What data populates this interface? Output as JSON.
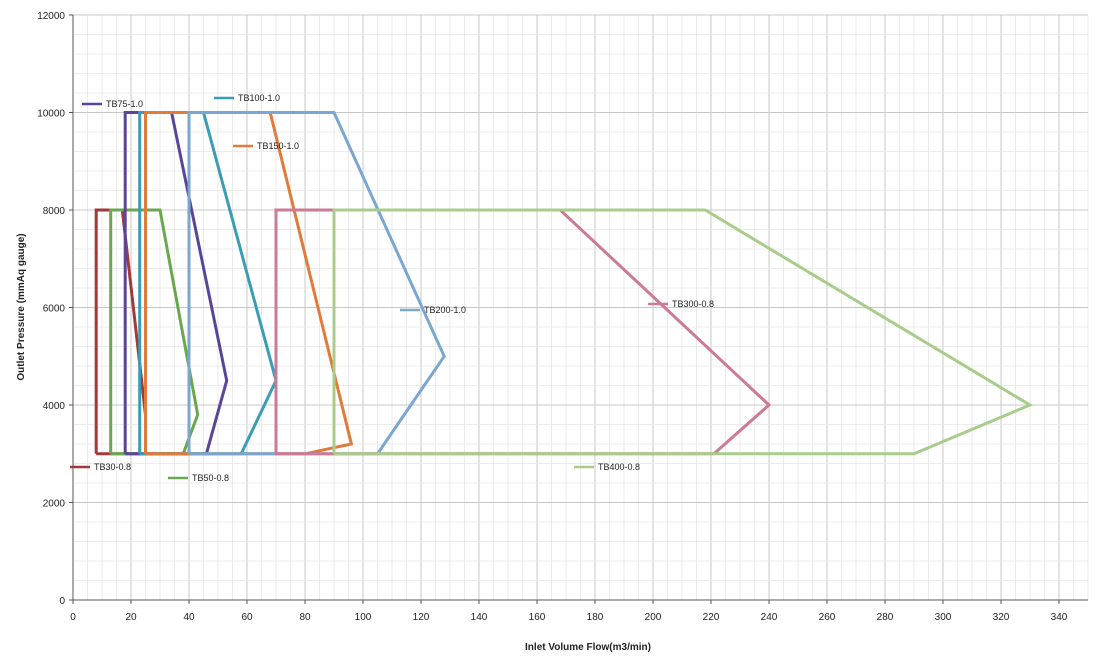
{
  "chart_data": {
    "type": "line",
    "title": "",
    "xlabel": "Inlet Volume Flow(m3/min)",
    "ylabel": "Outlet Pressure (mmAq gauge)",
    "xlim": [
      0,
      350
    ],
    "ylim": [
      0,
      12000
    ],
    "x_ticks": [
      "0",
      "20",
      "40",
      "60",
      "80",
      "100",
      "120",
      "140",
      "160",
      "180",
      "200",
      "220",
      "240",
      "260",
      "280",
      "300",
      "320",
      "340"
    ],
    "y_ticks": [
      "0",
      "2000",
      "4000",
      "6000",
      "8000",
      "10000",
      "12000"
    ],
    "grid": true,
    "series": [
      {
        "name": "TB30-0.8",
        "color": "#a0393c",
        "points": [
          [
            8,
            3000
          ],
          [
            8,
            8000
          ],
          [
            17,
            8000
          ],
          [
            25,
            3800
          ],
          [
            25,
            3000
          ],
          [
            8,
            3000
          ]
        ]
      },
      {
        "name": "TB50-0.8",
        "color": "#6aa84f",
        "points": [
          [
            13,
            3000
          ],
          [
            13,
            8000
          ],
          [
            30,
            8000
          ],
          [
            43,
            3800
          ],
          [
            38,
            3000
          ],
          [
            13,
            3000
          ]
        ]
      },
      {
        "name": "TB75-1.0",
        "color": "#5a4599",
        "points": [
          [
            18,
            3000
          ],
          [
            18,
            10000
          ],
          [
            34,
            10000
          ],
          [
            53,
            4500
          ],
          [
            46,
            3000
          ],
          [
            18,
            3000
          ]
        ]
      },
      {
        "name": "TB100-1.0",
        "color": "#3a9db5",
        "points": [
          [
            23,
            3000
          ],
          [
            23,
            10000
          ],
          [
            45,
            10000
          ],
          [
            70,
            4500
          ],
          [
            58,
            3000
          ],
          [
            23,
            3000
          ]
        ]
      },
      {
        "name": "TB150-1.0",
        "color": "#e07b39",
        "points": [
          [
            25,
            3000
          ],
          [
            25,
            10000
          ],
          [
            68,
            10000
          ],
          [
            96,
            3200
          ],
          [
            80,
            3000
          ],
          [
            25,
            3000
          ]
        ]
      },
      {
        "name": "TB200-1.0",
        "color": "#7aa6cf",
        "points": [
          [
            40,
            3000
          ],
          [
            40,
            10000
          ],
          [
            90,
            10000
          ],
          [
            128,
            5000
          ],
          [
            105,
            3000
          ],
          [
            40,
            3000
          ]
        ]
      },
      {
        "name": "TB300-0.8",
        "color": "#cc7a95",
        "points": [
          [
            70,
            3000
          ],
          [
            70,
            8000
          ],
          [
            168,
            8000
          ],
          [
            240,
            4000
          ],
          [
            221,
            3000
          ],
          [
            70,
            3000
          ]
        ]
      },
      {
        "name": "TB400-0.8",
        "color": "#a8cc8c",
        "points": [
          [
            90,
            3000
          ],
          [
            90,
            8000
          ],
          [
            218,
            8000
          ],
          [
            330,
            4000
          ],
          [
            290,
            3000
          ],
          [
            90,
            3000
          ]
        ]
      }
    ]
  },
  "legend_labels": [
    {
      "text": "TB75-1.0",
      "series": 2
    },
    {
      "text": "TB100-1.0",
      "series": 3
    },
    {
      "text": "TB150-1.0",
      "series": 4
    },
    {
      "text": "TB200-1.0",
      "series": 5
    },
    {
      "text": "TB300-0.8",
      "series": 6
    },
    {
      "text": "TB30-0.8",
      "series": 0
    },
    {
      "text": "TB50-0.8",
      "series": 1
    },
    {
      "text": "TB400-0.8",
      "series": 7
    }
  ]
}
